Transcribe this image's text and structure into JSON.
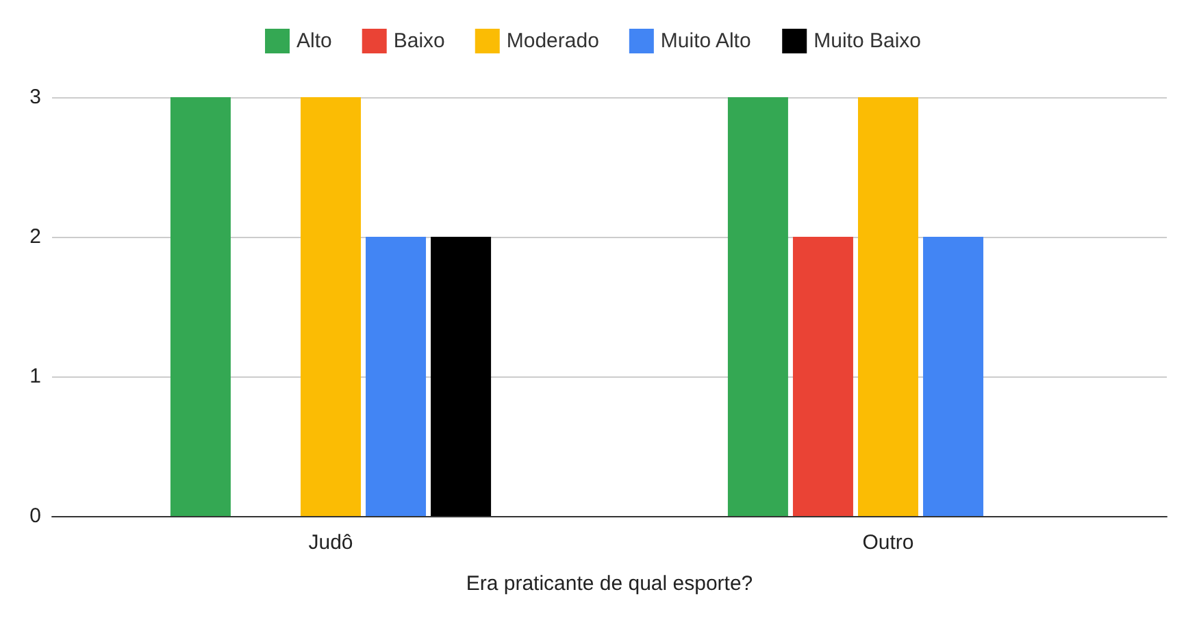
{
  "chart_data": {
    "type": "bar",
    "xlabel": "Era praticante de qual esporte?",
    "categories": [
      "Judô",
      "Outro"
    ],
    "series": [
      {
        "name": "Alto",
        "color": "#34a853",
        "values": [
          3,
          3
        ]
      },
      {
        "name": "Baixo",
        "color": "#ea4335",
        "values": [
          null,
          2
        ]
      },
      {
        "name": "Moderado",
        "color": "#fbbc04",
        "values": [
          3,
          3
        ]
      },
      {
        "name": "Muito Alto",
        "color": "#4285f4",
        "values": [
          2,
          2
        ]
      },
      {
        "name": "Muito Baixo",
        "color": "#000000",
        "values": [
          2,
          null
        ]
      }
    ],
    "ylim": [
      0,
      3
    ],
    "yticks": [
      0,
      1,
      2,
      3
    ],
    "grid": "y",
    "legend": "top"
  }
}
